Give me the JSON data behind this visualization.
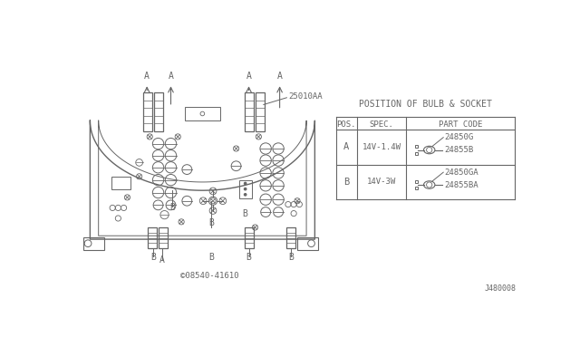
{
  "bg_color": "#ffffff",
  "line_color": "#666666",
  "title": "POSITION OF BULB & SOCKET",
  "table_headers": [
    "POS.",
    "SPEC.",
    "PART CODE"
  ],
  "row_a": {
    "pos": "A",
    "spec": "14V-1.4W",
    "code1": "24850G",
    "code2": "24855B"
  },
  "row_b": {
    "pos": "B",
    "spec": "14V-3W",
    "code1": "24850GA",
    "code2": "24855BA"
  },
  "label_25010AA": "25010AA",
  "label_copyright": "©08540-41610",
  "label_ref": "J480008",
  "font_size": 6.5
}
